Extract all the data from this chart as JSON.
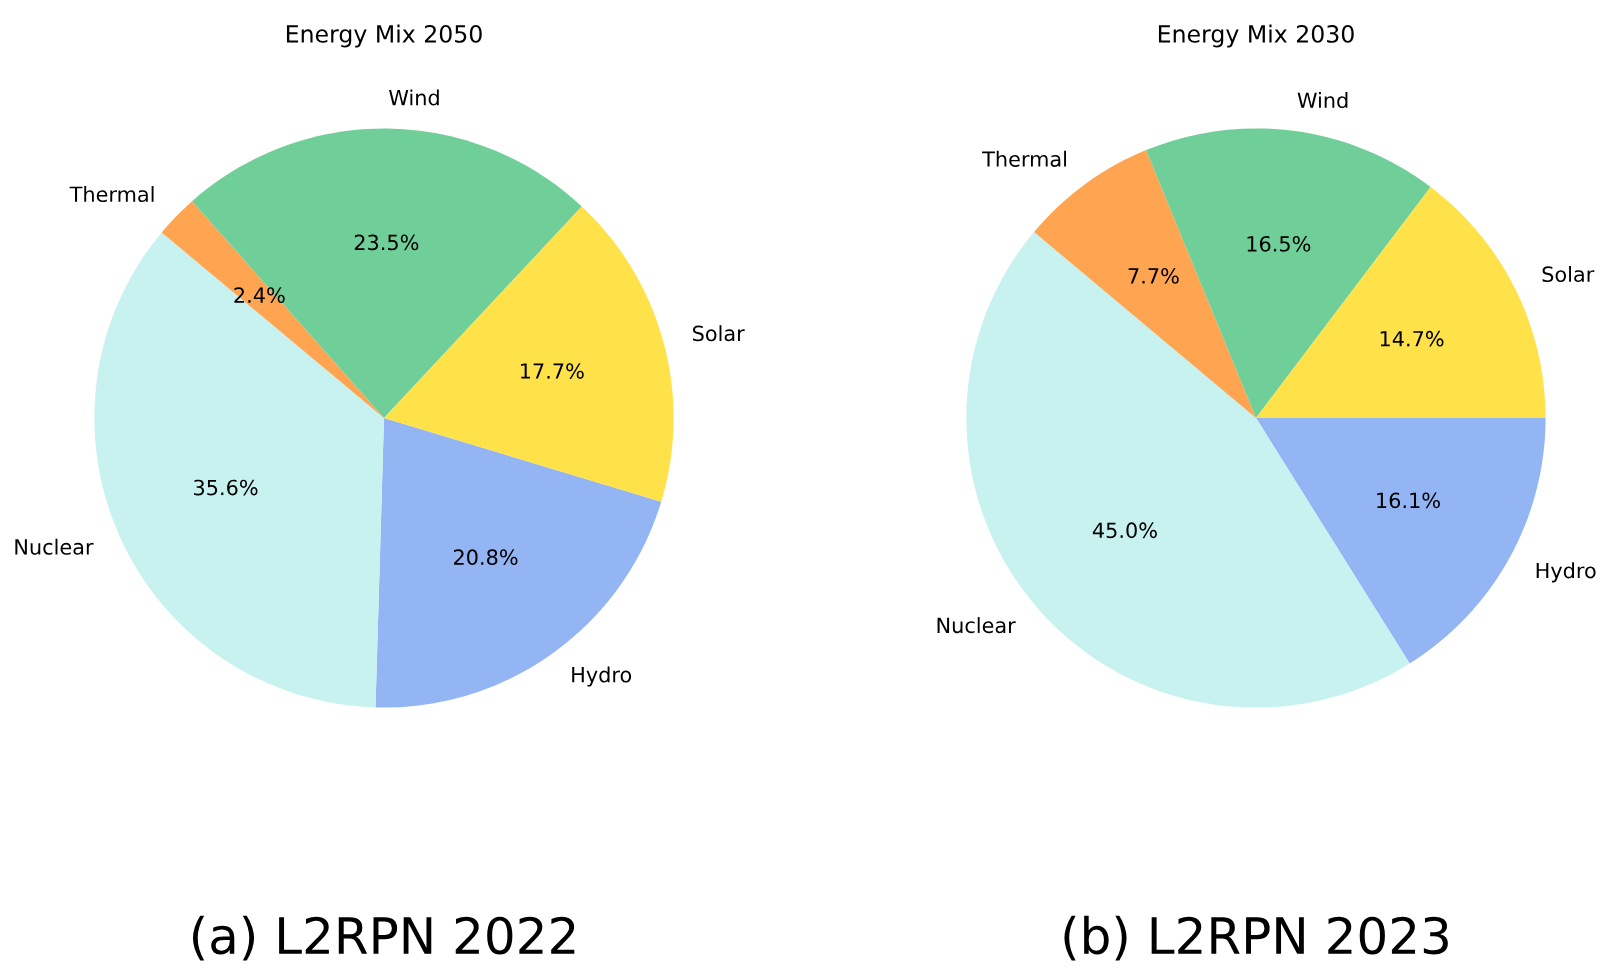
{
  "chart_data": [
    {
      "type": "pie",
      "title": "Energy Mix 2050",
      "categories": [
        "Hydro",
        "Nuclear",
        "Thermal",
        "Wind",
        "Solar"
      ],
      "values": [
        20.8,
        35.6,
        2.4,
        23.5,
        17.7
      ],
      "colors": [
        "#93b5f3",
        "#c7f2f0",
        "#ffa552",
        "#70cf98",
        "#ffe24a"
      ],
      "value_labels": [
        "20.8%",
        "35.6%",
        "2.4%",
        "23.5%",
        "17.7%"
      ],
      "annotations": [
        "(a) L2RPN 2022"
      ]
    },
    {
      "type": "pie",
      "title": "Energy Mix 2030",
      "categories": [
        "Hydro",
        "Nuclear",
        "Thermal",
        "Wind",
        "Solar"
      ],
      "values": [
        16.1,
        45.0,
        7.7,
        16.5,
        14.7
      ],
      "colors": [
        "#93b5f3",
        "#c7f2f0",
        "#ffa552",
        "#70cf98",
        "#ffe24a"
      ],
      "value_labels": [
        "16.1%",
        "45.0%",
        "7.7%",
        "16.5%",
        "14.7%"
      ],
      "annotations": [
        "(b) L2RPN 2023"
      ]
    }
  ]
}
